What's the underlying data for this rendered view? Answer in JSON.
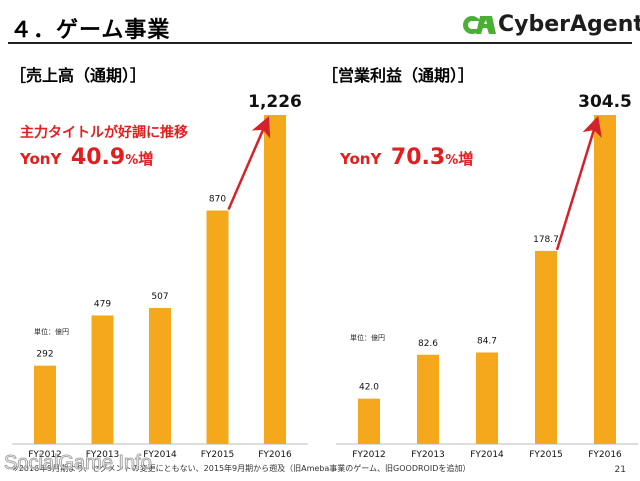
{
  "header": {
    "title": "４．ゲーム事業",
    "logo_text": "CyberAgent"
  },
  "left": {
    "section_title": "［売上高（通期）］",
    "callout_line1": "主力タイトルが好調に推移",
    "callout_yoy": "YonY",
    "callout_pct": "40.9",
    "callout_pct_unit": "%",
    "callout_suffix": "増"
  },
  "right": {
    "section_title": "［営業利益（通期）］",
    "callout_yoy": "YonY",
    "callout_pct": "70.3",
    "callout_pct_unit": "%",
    "callout_suffix": "増"
  },
  "footnote": "※2016年9月期より、セグメントの変更にともない、2015年9月期から遡及（旧Ameba事業のゲーム、旧GOODROIDを追加）",
  "page_number": "21",
  "watermark": "SocialGame Info",
  "colors": {
    "bar": "#f5a81c",
    "arrow": "#d2232a",
    "accent_red": "#e02020"
  },
  "chart_data": [
    {
      "type": "bar",
      "title": "［売上高（通期）］",
      "unit_label": "単位：億円",
      "categories": [
        "FY2012",
        "FY2013",
        "FY2014",
        "FY2015",
        "FY2016"
      ],
      "values": [
        292,
        479,
        507,
        870,
        1226
      ],
      "value_labels": [
        "292",
        "479",
        "507",
        "870",
        "1,226"
      ],
      "ylim": [
        0,
        1226
      ],
      "grid": false
    },
    {
      "type": "bar",
      "title": "［営業利益（通期）］",
      "unit_label": "単位：億円",
      "categories": [
        "FY2012",
        "FY2013",
        "FY2014",
        "FY2015",
        "FY2016"
      ],
      "values": [
        42.0,
        82.6,
        84.7,
        178.7,
        304.5
      ],
      "value_labels": [
        "42.0",
        "82.6",
        "84.7",
        "178.7",
        "304.5"
      ],
      "ylim": [
        0,
        304.5
      ],
      "grid": false
    }
  ]
}
